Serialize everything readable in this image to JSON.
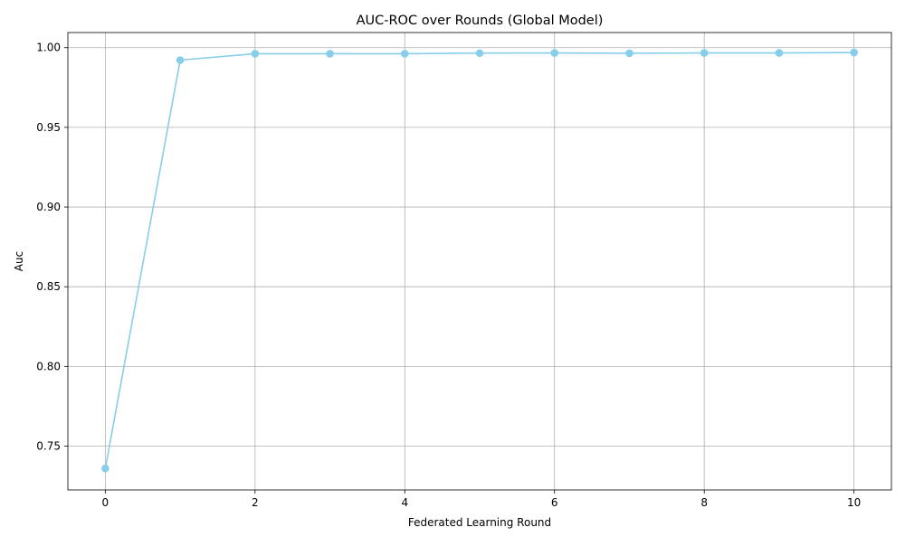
{
  "chart_data": {
    "type": "line",
    "title": "AUC-ROC over Rounds (Global Model)",
    "xlabel": "Federated Learning Round",
    "ylabel": "Auc",
    "xlim": [
      -0.5,
      10.5
    ],
    "ylim": [
      0.7225,
      1.0095
    ],
    "xticks": [
      0,
      2,
      4,
      6,
      8,
      10
    ],
    "yticks": [
      0.75,
      0.8,
      0.85,
      0.9,
      0.95,
      1.0
    ],
    "xtick_labels": [
      "0",
      "2",
      "4",
      "6",
      "8",
      "10"
    ],
    "ytick_labels": [
      "0.75",
      "0.80",
      "0.85",
      "0.90",
      "0.95",
      "1.00"
    ],
    "grid": true,
    "series": [
      {
        "color": "#87CEEB",
        "marker": "circle",
        "x": [
          0,
          1,
          2,
          3,
          4,
          5,
          6,
          7,
          8,
          9,
          10
        ],
        "y": [
          0.736,
          0.9922,
          0.9962,
          0.9962,
          0.9962,
          0.9966,
          0.9967,
          0.9965,
          0.9967,
          0.9967,
          0.997
        ]
      }
    ]
  }
}
